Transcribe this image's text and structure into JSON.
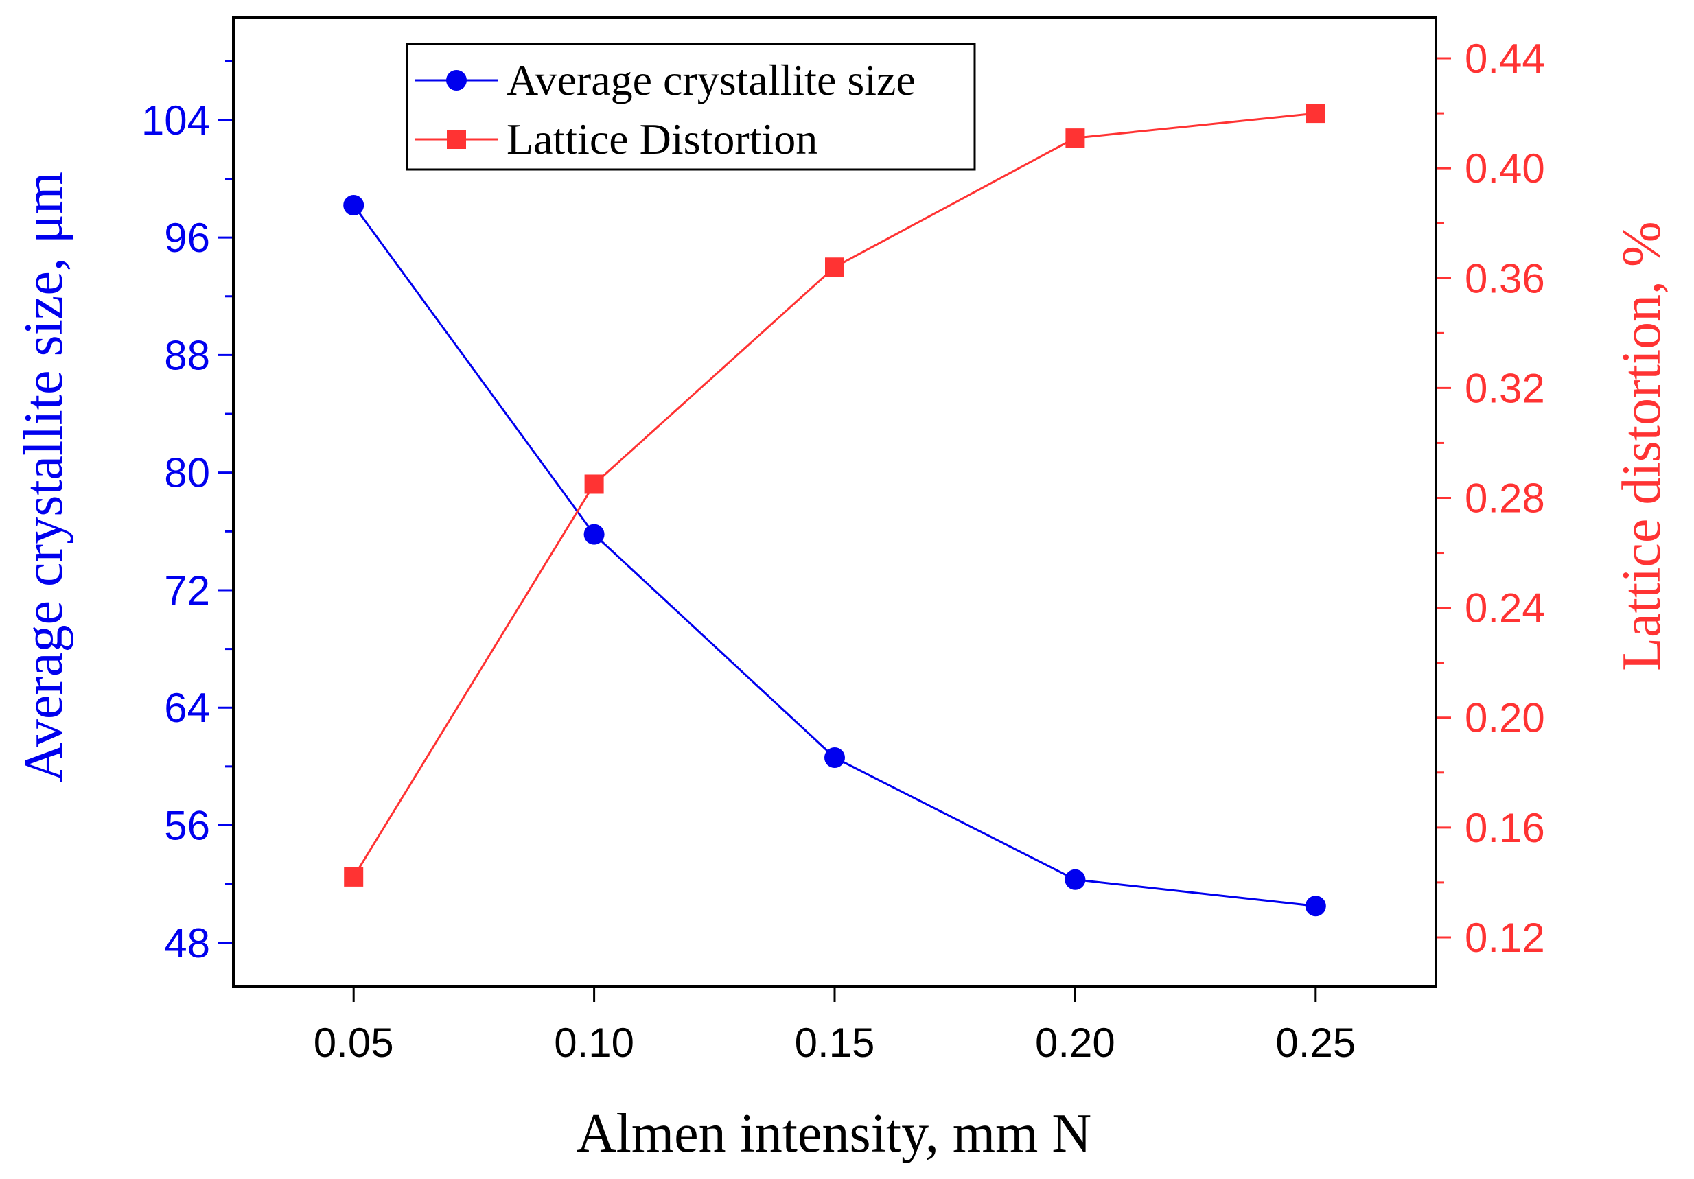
{
  "chart_data": {
    "type": "line",
    "title": "",
    "xlabel": "Almen intensity, mm N",
    "ylabel_left": "Average crystallite size, μm",
    "ylabel_right": "Lattice distortion, %",
    "x": [
      0.05,
      0.1,
      0.15,
      0.2,
      0.25
    ],
    "x_tick_labels": [
      "0.05",
      "0.10",
      "0.15",
      "0.20",
      "0.25"
    ],
    "xlim": [
      0.025,
      0.275
    ],
    "ylim_left": [
      45,
      111
    ],
    "ylim_right": [
      0.102,
      0.455
    ],
    "y_left_ticks": [
      48,
      56,
      64,
      72,
      80,
      88,
      96,
      104
    ],
    "y_left_tick_labels": [
      "48",
      "56",
      "64",
      "72",
      "80",
      "88",
      "96",
      "104"
    ],
    "y_right_ticks": [
      0.12,
      0.16,
      0.2,
      0.24,
      0.28,
      0.32,
      0.36,
      0.4,
      0.44
    ],
    "y_right_tick_labels": [
      "0.12",
      "0.16",
      "0.20",
      "0.24",
      "0.28",
      "0.32",
      "0.36",
      "0.40",
      "0.44"
    ],
    "grid": false,
    "legend_position": "top-left",
    "series": [
      {
        "name": "Average crystallite size",
        "axis": "left",
        "marker": "circle",
        "color": "#0000ee",
        "values": [
          98.2,
          75.8,
          60.6,
          52.3,
          50.5
        ]
      },
      {
        "name": "Lattice Distortion",
        "axis": "right",
        "marker": "square",
        "color": "#ff3333",
        "values": [
          0.142,
          0.285,
          0.364,
          0.411,
          0.42
        ]
      }
    ],
    "colors": {
      "left_axis": "#0000ee",
      "right_axis": "#ff3333",
      "frame": "#000000"
    }
  }
}
